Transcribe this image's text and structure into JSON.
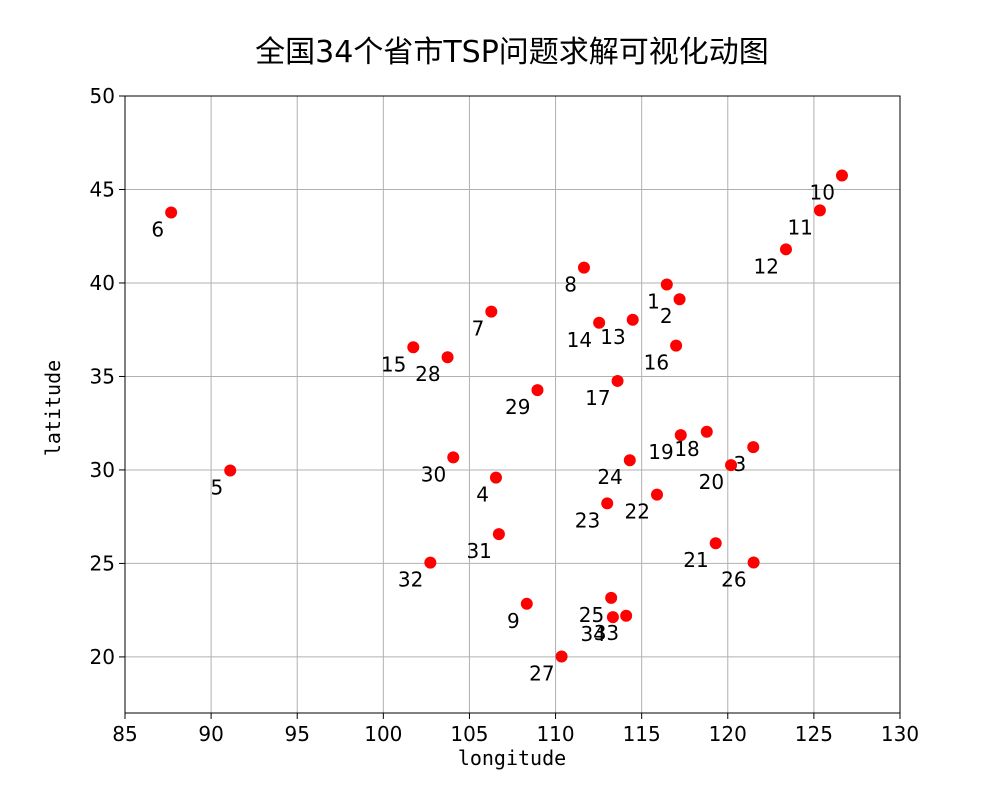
{
  "chart_data": {
    "type": "scatter",
    "title": "全国34个省市TSP问题求解可视化动图",
    "xlabel": "longitude",
    "ylabel": "latitude",
    "xlim": [
      85,
      130
    ],
    "ylim": [
      17,
      50
    ],
    "xticks": [
      85,
      90,
      95,
      100,
      105,
      110,
      115,
      120,
      125,
      130
    ],
    "yticks": [
      20,
      25,
      30,
      35,
      40,
      45,
      50
    ],
    "grid": true,
    "marker_color": "#ff0000",
    "points": [
      {
        "label": "1",
        "x": 116.46,
        "y": 39.92
      },
      {
        "label": "2",
        "x": 117.2,
        "y": 39.13
      },
      {
        "label": "3",
        "x": 121.48,
        "y": 31.22
      },
      {
        "label": "4",
        "x": 106.54,
        "y": 29.59
      },
      {
        "label": "5",
        "x": 91.11,
        "y": 29.97
      },
      {
        "label": "6",
        "x": 87.68,
        "y": 43.77
      },
      {
        "label": "7",
        "x": 106.27,
        "y": 38.47
      },
      {
        "label": "8",
        "x": 111.65,
        "y": 40.82
      },
      {
        "label": "9",
        "x": 108.33,
        "y": 22.84
      },
      {
        "label": "10",
        "x": 126.63,
        "y": 45.75
      },
      {
        "label": "11",
        "x": 125.35,
        "y": 43.88
      },
      {
        "label": "12",
        "x": 123.38,
        "y": 41.8
      },
      {
        "label": "13",
        "x": 114.48,
        "y": 38.03
      },
      {
        "label": "14",
        "x": 112.53,
        "y": 37.87
      },
      {
        "label": "15",
        "x": 101.74,
        "y": 36.56
      },
      {
        "label": "16",
        "x": 117.0,
        "y": 36.65
      },
      {
        "label": "17",
        "x": 113.6,
        "y": 34.76
      },
      {
        "label": "18",
        "x": 118.78,
        "y": 32.04
      },
      {
        "label": "19",
        "x": 117.27,
        "y": 31.86
      },
      {
        "label": "20",
        "x": 120.19,
        "y": 30.26
      },
      {
        "label": "21",
        "x": 119.3,
        "y": 26.08
      },
      {
        "label": "22",
        "x": 115.89,
        "y": 28.68
      },
      {
        "label": "23",
        "x": 113.0,
        "y": 28.21
      },
      {
        "label": "24",
        "x": 114.31,
        "y": 30.52
      },
      {
        "label": "25",
        "x": 113.23,
        "y": 23.16
      },
      {
        "label": "26",
        "x": 121.5,
        "y": 25.05
      },
      {
        "label": "27",
        "x": 110.35,
        "y": 20.02
      },
      {
        "label": "28",
        "x": 103.73,
        "y": 36.03
      },
      {
        "label": "29",
        "x": 108.95,
        "y": 34.27
      },
      {
        "label": "30",
        "x": 104.06,
        "y": 30.67
      },
      {
        "label": "31",
        "x": 106.71,
        "y": 26.57
      },
      {
        "label": "32",
        "x": 102.73,
        "y": 25.04
      },
      {
        "label": "33",
        "x": 114.1,
        "y": 22.2
      },
      {
        "label": "34",
        "x": 113.33,
        "y": 22.13
      }
    ]
  }
}
